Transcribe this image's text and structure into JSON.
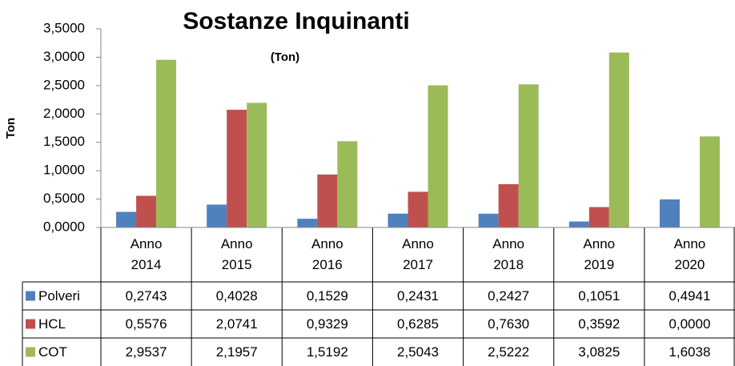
{
  "chart_data": {
    "type": "bar",
    "title": "Sostanze Inquinanti",
    "subtitle": "(Ton)",
    "y_label": "Ton",
    "categories": [
      "Anno 2014",
      "Anno 2015",
      "Anno 2016",
      "Anno 2017",
      "Anno 2018",
      "Anno 2019",
      "Anno 2020"
    ],
    "series": [
      {
        "name": "Polveri",
        "color": "#4f81bd",
        "values": [
          0.2743,
          0.4028,
          0.1529,
          0.2431,
          0.2427,
          0.1051,
          0.4941
        ],
        "value_labels": [
          "0,2743",
          "0,4028",
          "0,1529",
          "0,2431",
          "0,2427",
          "0,1051",
          "0,4941"
        ]
      },
      {
        "name": "HCL",
        "color": "#c0504d",
        "values": [
          0.5576,
          2.0741,
          0.9329,
          0.6285,
          0.763,
          0.3592,
          0
        ],
        "value_labels": [
          "0,5576",
          "2,0741",
          "0,9329",
          "0,6285",
          "0,7630",
          "0,3592",
          "0,0000"
        ]
      },
      {
        "name": "COT",
        "color": "#9bbb59",
        "values": [
          2.9537,
          2.1957,
          1.5192,
          2.5043,
          2.5222,
          3.0825,
          1.6038
        ],
        "value_labels": [
          "2,9537",
          "2,1957",
          "1,5192",
          "2,5043",
          "2,5222",
          "3,0825",
          "1,6038"
        ]
      }
    ],
    "ylim": [
      0,
      3.5
    ],
    "yticks": [
      {
        "value": 0,
        "label": "0,0000"
      },
      {
        "value": 0.5,
        "label": "0,5000"
      },
      {
        "value": 1,
        "label": "1,0000"
      },
      {
        "value": 1.5,
        "label": "1,5000"
      },
      {
        "value": 2,
        "label": "2,0000"
      },
      {
        "value": 2.5,
        "label": "2,5000"
      },
      {
        "value": 3,
        "label": "3,0000"
      },
      {
        "value": 3.5,
        "label": "3,5000"
      }
    ],
    "grid": false
  }
}
